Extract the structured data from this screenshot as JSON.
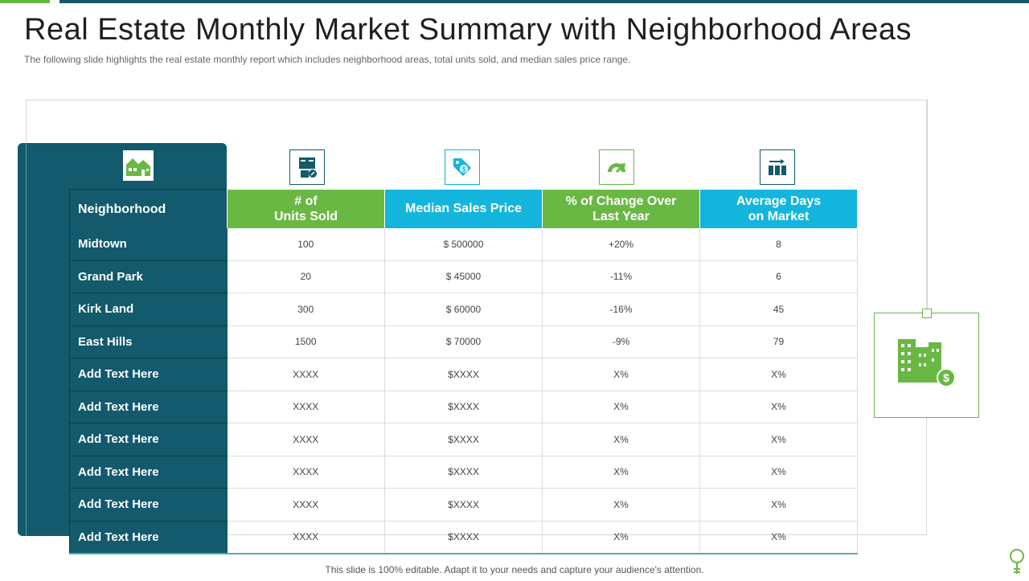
{
  "slide": {
    "title": "Real Estate Monthly Market Summary with Neighborhood Areas",
    "subtitle": "The following  slide highlights the real estate monthly report which includes neighborhood  areas, total units sold, and median sales price range.",
    "footer": "This slide is 100% editable. Adapt it to your needs and capture your audience's attention."
  },
  "icons": {
    "neighborhood": "houses-icon",
    "units": "documents-icon",
    "price": "price-tag-icon",
    "change": "gauge-icon",
    "days": "bar-chart-icon",
    "decor": "building-dollar-icon",
    "footer": "lightbulb-icon"
  },
  "colors": {
    "teal": "#125a6c",
    "green": "#6ab844",
    "cyan": "#13b5dc"
  },
  "table": {
    "headers": {
      "neighborhood": "Neighborhood",
      "units_line1": "# of",
      "units_line2": "Units Sold",
      "price": "Median Sales Price",
      "change_line1": "% of Change Over",
      "change_line2": "Last Year",
      "days_line1": "Average Days",
      "days_line2": "on Market"
    },
    "rows": [
      {
        "name": "Midtown",
        "units": "100",
        "price": "$ 500000",
        "change": "+20%",
        "days": "8"
      },
      {
        "name": "Grand Park",
        "units": "20",
        "price": "$ 45000",
        "change": "-11%",
        "days": "6"
      },
      {
        "name": "Kirk Land",
        "units": "300",
        "price": "$ 60000",
        "change": "-16%",
        "days": "45"
      },
      {
        "name": "East Hills",
        "units": "1500",
        "price": "$ 70000",
        "change": "-9%",
        "days": "79"
      },
      {
        "name": "Add  Text Here",
        "units": "XXXX",
        "price": "$XXXX",
        "change": "X%",
        "days": "X%"
      },
      {
        "name": "Add  Text Here",
        "units": "XXXX",
        "price": "$XXXX",
        "change": "X%",
        "days": "X%"
      },
      {
        "name": "Add  Text Here",
        "units": "XXXX",
        "price": "$XXXX",
        "change": "X%",
        "days": "X%"
      },
      {
        "name": "Add  Text Here",
        "units": "XXXX",
        "price": "$XXXX",
        "change": "X%",
        "days": "X%"
      },
      {
        "name": "Add  Text Here",
        "units": "XXXX",
        "price": "$XXXX",
        "change": "X%",
        "days": "X%"
      },
      {
        "name": "Add  Text Here",
        "units": "XXXX",
        "price": "$XXXX",
        "change": "X%",
        "days": "X%"
      }
    ]
  }
}
